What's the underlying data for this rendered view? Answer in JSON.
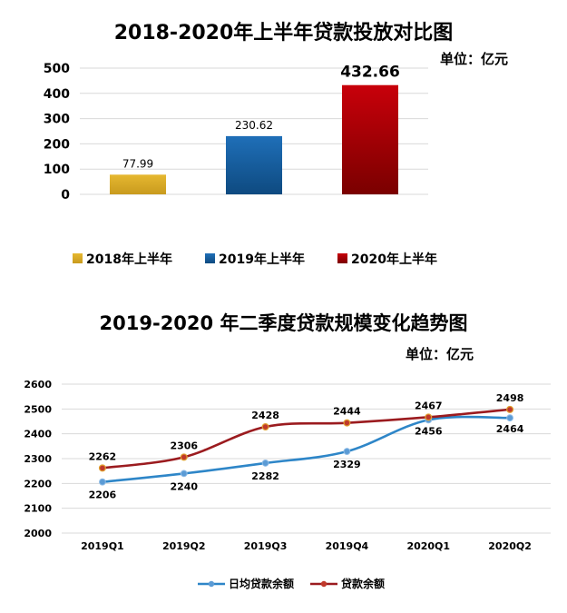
{
  "chart_data": [
    {
      "type": "bar",
      "title": "2018-2020年上半年贷款投放对比图",
      "unit_label": "单位：亿元",
      "categories": [
        "2018年上半年",
        "2019年上半年",
        "2020年上半年"
      ],
      "values": [
        77.99,
        230.62,
        432.66
      ],
      "value_labels": [
        "77.99",
        "230.62",
        "432.66"
      ],
      "ylim": [
        0,
        500
      ],
      "yticks": [
        "0",
        "100",
        "200",
        "300",
        "400",
        "500"
      ],
      "grid": true,
      "legend": "bottom",
      "colors": [
        "#E6B830",
        "#1F6FB8",
        "#C8000A"
      ],
      "colors_dark": [
        "#C89A1E",
        "#0E4A80",
        "#7A0000"
      ]
    },
    {
      "type": "line",
      "title": "2019-2020 年二季度贷款规模变化趋势图",
      "unit_label": "单位：亿元",
      "categories": [
        "2019Q1",
        "2019Q2",
        "2019Q3",
        "2019Q4",
        "2020Q1",
        "2020Q2"
      ],
      "series": [
        {
          "name": "日均贷款余额",
          "values": [
            2206,
            2240,
            2282,
            2329,
            2456,
            2464
          ],
          "labels": [
            "2206",
            "2240",
            "2282",
            "2329",
            "2456",
            "2464"
          ],
          "color": "#2E86C8",
          "marker": "#5B9BD5"
        },
        {
          "name": "贷款余额",
          "values": [
            2262,
            2306,
            2428,
            2444,
            2467,
            2498
          ],
          "labels": [
            "2262",
            "2306",
            "2428",
            "2444",
            "2467",
            "2498"
          ],
          "color": "#9B1B1F",
          "marker": "#C0392B"
        }
      ],
      "ylim": [
        2000,
        2600
      ],
      "yticks": [
        "2000",
        "2100",
        "2200",
        "2300",
        "2400",
        "2500",
        "2600"
      ],
      "grid": true,
      "legend": "bottom"
    }
  ]
}
